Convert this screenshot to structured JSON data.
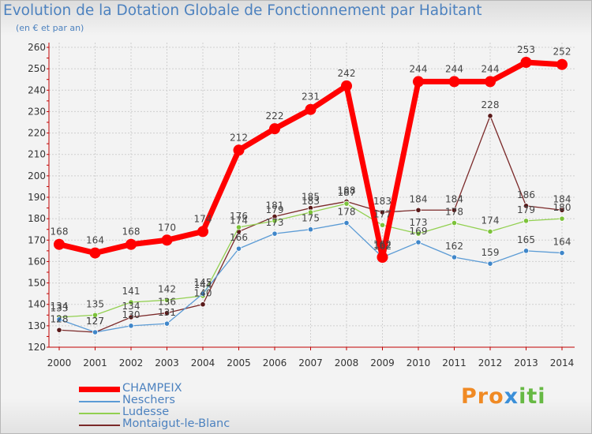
{
  "title": "Evolution de la Dotation Globale de Fonctionnement par Habitant",
  "subtitle": "(en € et par an)",
  "logo": {
    "part1": "Pro",
    "part2": "x",
    "part3": "iti"
  },
  "chart_data": {
    "type": "line",
    "title": "Evolution de la Dotation Globale de Fonctionnement par Habitant",
    "ylabel": "(en € et par an)",
    "xlabel": "",
    "categories": [
      "2000",
      "2001",
      "2002",
      "2003",
      "2004",
      "2005",
      "2006",
      "2007",
      "2008",
      "2009",
      "2010",
      "2011",
      "2012",
      "2013",
      "2014"
    ],
    "yticks": [
      120,
      130,
      140,
      150,
      160,
      170,
      180,
      190,
      200,
      210,
      220,
      230,
      240,
      250,
      260
    ],
    "ylim": [
      120,
      260
    ],
    "grid": true,
    "legend": "bottom-left",
    "series": [
      {
        "name": "CHAMPEIX",
        "color": "#ff0000",
        "values": [
          168,
          164,
          168,
          170,
          174,
          212,
          222,
          231,
          242,
          162,
          244,
          244,
          244,
          253,
          252
        ]
      },
      {
        "name": "Neschers",
        "color": "#5b9bd5",
        "values": [
          133,
          127,
          130,
          131,
          145,
          166,
          173,
          175,
          178,
          162,
          169,
          162,
          159,
          165,
          164
        ]
      },
      {
        "name": "Ludesse",
        "color": "#92d050",
        "values": [
          134,
          135,
          141,
          142,
          144,
          176,
          179,
          183,
          187,
          177,
          173,
          178,
          174,
          179,
          180
        ]
      },
      {
        "name": "Montaigut-le-Blanc",
        "color": "#7b2a2a",
        "values": [
          128,
          127,
          134,
          136,
          140,
          174,
          181,
          185,
          188,
          183,
          184,
          184,
          228,
          186,
          184
        ]
      }
    ]
  }
}
